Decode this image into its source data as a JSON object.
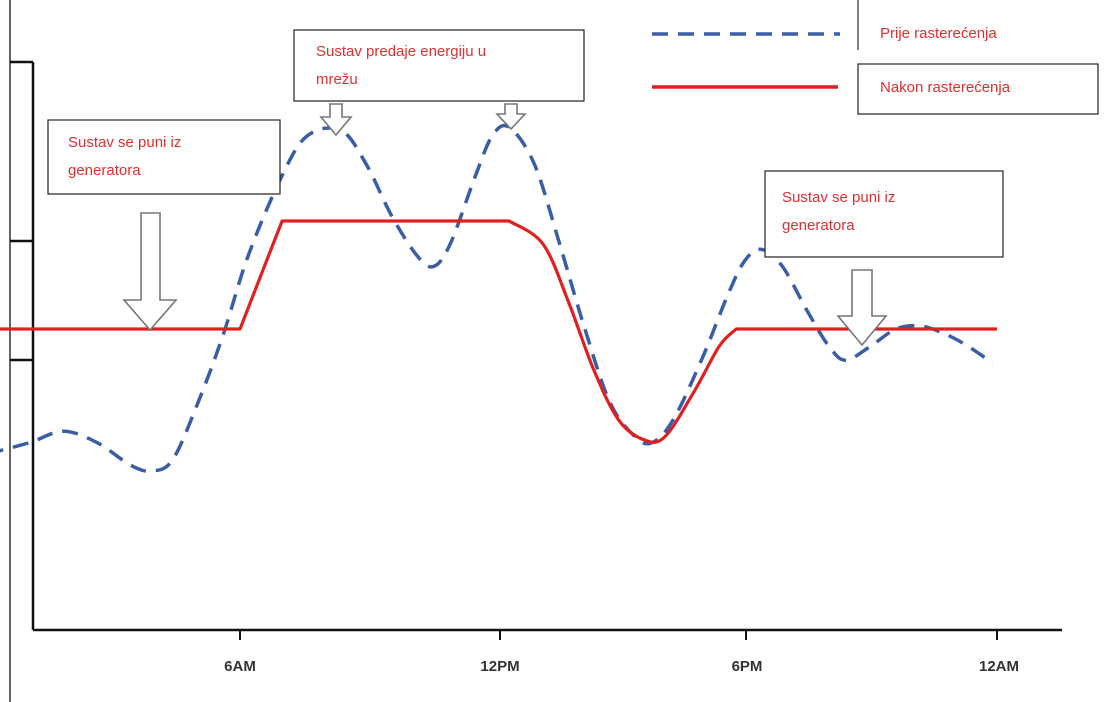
{
  "chart_data": {
    "type": "line",
    "title": "",
    "xlabel": "",
    "ylabel": "",
    "x_ticks": [
      "6AM",
      "12PM",
      "6PM",
      "12AM"
    ],
    "xlim": [
      0,
      24
    ],
    "ylim": [
      0,
      100
    ],
    "grid": false,
    "legend_position": "top-right",
    "series": [
      {
        "name": "Prije rasterećenja",
        "style": "dashed",
        "color": "#3a5da6",
        "points": [
          [
            0,
            31
          ],
          [
            1.0,
            33
          ],
          [
            1.8,
            35
          ],
          [
            2.6,
            33
          ],
          [
            3.4,
            29
          ],
          [
            3.9,
            28
          ],
          [
            4.4,
            30
          ],
          [
            5.0,
            40
          ],
          [
            5.6,
            52
          ],
          [
            6.2,
            66
          ],
          [
            7.0,
            80
          ],
          [
            7.6,
            87
          ],
          [
            8.4,
            88
          ],
          [
            9.0,
            82
          ],
          [
            9.6,
            73
          ],
          [
            10.2,
            66
          ],
          [
            10.6,
            64
          ],
          [
            11.0,
            68
          ],
          [
            11.6,
            80
          ],
          [
            12.0,
            87
          ],
          [
            12.4,
            88.5
          ],
          [
            13.0,
            82
          ],
          [
            13.6,
            68
          ],
          [
            14.2,
            53
          ],
          [
            14.8,
            40
          ],
          [
            15.4,
            34
          ],
          [
            15.8,
            33
          ],
          [
            16.3,
            37
          ],
          [
            17.0,
            48
          ],
          [
            17.6,
            59
          ],
          [
            18.0,
            65
          ],
          [
            18.4,
            67
          ],
          [
            18.9,
            64
          ],
          [
            19.5,
            56
          ],
          [
            20.0,
            50
          ],
          [
            20.4,
            47.5
          ],
          [
            21.0,
            50
          ],
          [
            21.6,
            53
          ],
          [
            22.2,
            53.5
          ],
          [
            22.8,
            52
          ],
          [
            23.3,
            50
          ],
          [
            23.9,
            47
          ]
        ]
      },
      {
        "name": "Nakon rasterećenja",
        "style": "solid",
        "color": "#e02020",
        "points": [
          [
            0,
            53
          ],
          [
            6.0,
            53
          ],
          [
            7.0,
            72
          ],
          [
            12.4,
            72
          ],
          [
            13.2,
            68
          ],
          [
            13.8,
            58
          ],
          [
            14.4,
            46
          ],
          [
            15.0,
            37
          ],
          [
            15.6,
            33.5
          ],
          [
            16.1,
            34
          ],
          [
            16.8,
            42
          ],
          [
            17.4,
            50
          ],
          [
            17.8,
            53
          ],
          [
            24.0,
            53
          ]
        ]
      }
    ],
    "annotations": [
      {
        "text_lines": [
          "Sustav se puni iz",
          "generatora"
        ],
        "arrow_x": 3.2
      },
      {
        "text_lines": [
          "Sustav predaje energiju u",
          "mrežu"
        ],
        "arrow_x": [
          8.4,
          12.2
        ]
      },
      {
        "text_lines": [
          "Sustav se puni iz",
          "generatora"
        ],
        "arrow_x": 20.3
      }
    ]
  }
}
